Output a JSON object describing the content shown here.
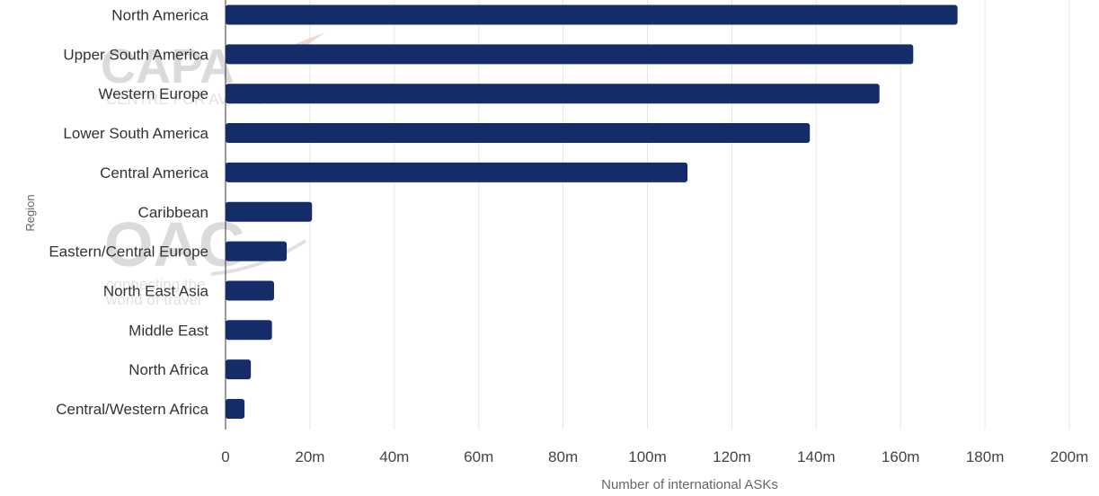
{
  "watermarks": {
    "capa_logo": "CAPA",
    "capa_tagline": "CENTRE FOR AVIATION",
    "oag_logo": "OAG",
    "oag_tagline_line1": "connecting the",
    "oag_tagline_line2": "world of travel"
  },
  "chart_data": {
    "type": "bar",
    "orientation": "horizontal",
    "xlabel": "Number of international ASKs",
    "ylabel": "Region",
    "xlim": [
      0,
      200
    ],
    "x_ticks": [
      0,
      20,
      40,
      60,
      80,
      100,
      120,
      140,
      160,
      180,
      200
    ],
    "x_tick_labels": [
      "0",
      "20m",
      "40m",
      "60m",
      "80m",
      "100m",
      "120m",
      "140m",
      "160m",
      "180m",
      "200m"
    ],
    "value_unit": "m",
    "grid": "vertical",
    "bar_color": "#142d69",
    "categories": [
      "North America",
      "Upper South America",
      "Western Europe",
      "Lower South America",
      "Central America",
      "Caribbean",
      "Eastern/Central Europe",
      "North East Asia",
      "Middle East",
      "North Africa",
      "Central/Western Africa"
    ],
    "values": [
      173.5,
      163,
      155,
      138.5,
      109.5,
      20.5,
      14.5,
      11.5,
      11,
      6,
      4.5
    ]
  }
}
